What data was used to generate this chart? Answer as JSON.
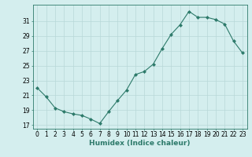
{
  "x": [
    0,
    1,
    2,
    3,
    4,
    5,
    6,
    7,
    8,
    9,
    10,
    11,
    12,
    13,
    14,
    15,
    16,
    17,
    18,
    19,
    20,
    21,
    22,
    23
  ],
  "y": [
    22.0,
    20.8,
    19.3,
    18.8,
    18.5,
    18.3,
    17.8,
    17.2,
    18.8,
    20.3,
    21.7,
    23.8,
    24.2,
    25.2,
    27.3,
    29.2,
    30.5,
    32.3,
    31.5,
    31.5,
    31.2,
    30.6,
    28.3,
    26.7
  ],
  "xlim": [
    -0.5,
    23.5
  ],
  "ylim": [
    16.5,
    33.2
  ],
  "yticks": [
    17,
    19,
    21,
    23,
    25,
    27,
    29,
    31
  ],
  "xticks": [
    0,
    1,
    2,
    3,
    4,
    5,
    6,
    7,
    8,
    9,
    10,
    11,
    12,
    13,
    14,
    15,
    16,
    17,
    18,
    19,
    20,
    21,
    22,
    23
  ],
  "xlabel": "Humidex (Indice chaleur)",
  "line_color": "#2d7a6a",
  "marker": "D",
  "marker_size": 2.0,
  "bg_color": "#d4eeee",
  "grid_color": "#b8d8d8",
  "tick_label_fontsize": 5.5,
  "xlabel_fontsize": 6.5,
  "linewidth": 0.8
}
